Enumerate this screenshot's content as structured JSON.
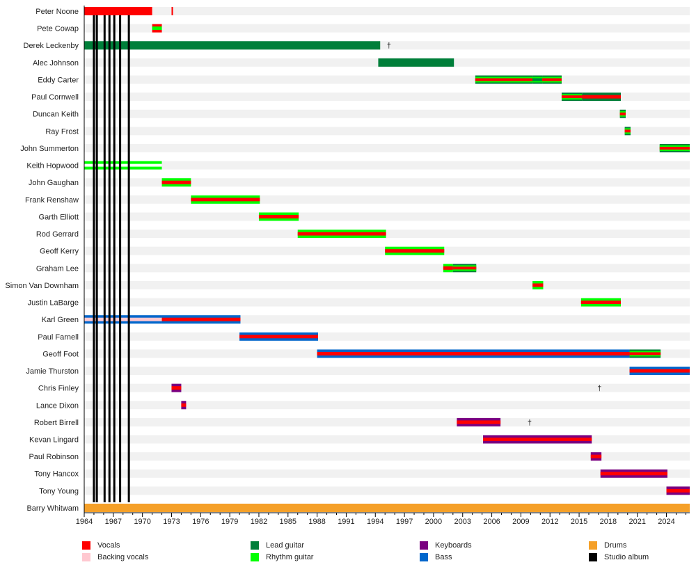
{
  "chart_data": {
    "type": "timeline",
    "xlim": [
      1964,
      2026.4
    ],
    "x_ticks": [
      1964,
      1967,
      1970,
      1973,
      1976,
      1979,
      1982,
      1985,
      1988,
      1991,
      1994,
      1997,
      2000,
      2003,
      2006,
      2009,
      2012,
      2015,
      2018,
      2021,
      2024
    ],
    "colors": {
      "vocals": "#ff0000",
      "backing": "#ffc8d0",
      "lead": "#007f3a",
      "rhythm": "#00ff00",
      "keys": "#7a0080",
      "bass": "#0066cc",
      "drums": "#f5a028",
      "album": "#000000",
      "gap": "#ffffff"
    },
    "members": [
      {
        "name": "Peter Noone",
        "segments": [
          {
            "start": 1964,
            "end": 1971.0,
            "layers": [
              "vocals"
            ]
          },
          {
            "start": 1973.0,
            "end": 1973.15,
            "layers": [
              "vocals"
            ]
          }
        ]
      },
      {
        "name": "Pete Cowap",
        "segments": [
          {
            "start": 1971.0,
            "end": 1972.0,
            "layers": [
              "vocals",
              "rhythm"
            ]
          }
        ]
      },
      {
        "name": "Derek Leckenby",
        "segments": [
          {
            "start": 1964,
            "end": 1994.5,
            "layers": [
              "lead"
            ]
          }
        ],
        "death": 1995.4
      },
      {
        "name": "Alec Johnson",
        "segments": [
          {
            "start": 1994.3,
            "end": 2002.1,
            "layers": [
              "lead"
            ]
          }
        ]
      },
      {
        "name": "Eddy Carter",
        "segments": [
          {
            "start": 2004.3,
            "end": 2010.2,
            "layers": [
              "lead",
              "rhythm",
              "vocals"
            ]
          },
          {
            "start": 2010.2,
            "end": 2011.2,
            "layers": [
              "lead",
              "rhythm",
              "lead"
            ]
          },
          {
            "start": 2011.2,
            "end": 2013.2,
            "layers": [
              "lead",
              "rhythm",
              "vocals"
            ]
          }
        ]
      },
      {
        "name": "Paul Cornwell",
        "segments": [
          {
            "start": 2013.2,
            "end": 2015.3,
            "layers": [
              "lead",
              "rhythm",
              "vocals"
            ]
          },
          {
            "start": 2015.3,
            "end": 2019.3,
            "layers": [
              "lead",
              "vocals"
            ]
          }
        ]
      },
      {
        "name": "Duncan Keith",
        "segments": [
          {
            "start": 2019.2,
            "end": 2019.8,
            "layers": [
              "lead",
              "rhythm",
              "vocals"
            ]
          }
        ]
      },
      {
        "name": "Ray Frost",
        "segments": [
          {
            "start": 2019.7,
            "end": 2020.3,
            "layers": [
              "lead",
              "rhythm",
              "vocals"
            ]
          }
        ]
      },
      {
        "name": "John Summerton",
        "segments": [
          {
            "start": 2023.3,
            "end": 2026.4,
            "layers": [
              "lead",
              "rhythm",
              "vocals"
            ]
          }
        ]
      },
      {
        "name": "Keith Hopwood",
        "segments": [
          {
            "start": 1964,
            "end": 1972.0,
            "layers": [
              "rhythm",
              "gap"
            ]
          }
        ]
      },
      {
        "name": "John Gaughan",
        "segments": [
          {
            "start": 1972.0,
            "end": 1975.0,
            "layers": [
              "rhythm",
              "vocals"
            ]
          }
        ]
      },
      {
        "name": "Frank Renshaw",
        "segments": [
          {
            "start": 1975.0,
            "end": 1982.1,
            "layers": [
              "rhythm",
              "vocals"
            ]
          }
        ]
      },
      {
        "name": "Garth Elliott",
        "segments": [
          {
            "start": 1982.0,
            "end": 1986.1,
            "layers": [
              "rhythm",
              "vocals"
            ]
          }
        ]
      },
      {
        "name": "Rod Gerrard",
        "segments": [
          {
            "start": 1986.0,
            "end": 1995.1,
            "layers": [
              "rhythm",
              "vocals"
            ]
          }
        ]
      },
      {
        "name": "Geoff Kerry",
        "segments": [
          {
            "start": 1995.0,
            "end": 2001.1,
            "layers": [
              "rhythm",
              "vocals"
            ]
          }
        ]
      },
      {
        "name": "Graham Lee",
        "segments": [
          {
            "start": 2001.0,
            "end": 2002.0,
            "layers": [
              "rhythm",
              "vocals"
            ]
          },
          {
            "start": 2002.0,
            "end": 2004.4,
            "layers": [
              "lead",
              "rhythm",
              "vocals"
            ]
          }
        ]
      },
      {
        "name": "Simon Van Downham",
        "segments": [
          {
            "start": 2010.2,
            "end": 2011.3,
            "layers": [
              "rhythm",
              "vocals"
            ]
          }
        ]
      },
      {
        "name": "Justin LaBarge",
        "segments": [
          {
            "start": 2015.2,
            "end": 2019.3,
            "layers": [
              "rhythm",
              "vocals"
            ]
          }
        ]
      },
      {
        "name": "Karl Green",
        "segments": [
          {
            "start": 1964,
            "end": 1972.0,
            "layers": [
              "bass",
              "backing"
            ]
          },
          {
            "start": 1972.0,
            "end": 1980.1,
            "layers": [
              "bass",
              "vocals"
            ]
          }
        ]
      },
      {
        "name": "Paul Farnell",
        "segments": [
          {
            "start": 1980.0,
            "end": 1988.1,
            "layers": [
              "bass",
              "vocals"
            ]
          }
        ]
      },
      {
        "name": "Geoff Foot",
        "segments": [
          {
            "start": 1988.0,
            "end": 2020.2,
            "layers": [
              "bass",
              "vocals"
            ]
          },
          {
            "start": 2020.2,
            "end": 2023.4,
            "layers": [
              "lead",
              "rhythm",
              "vocals"
            ]
          }
        ]
      },
      {
        "name": "Jamie Thurston",
        "segments": [
          {
            "start": 2020.2,
            "end": 2026.4,
            "layers": [
              "bass",
              "vocals"
            ]
          }
        ]
      },
      {
        "name": "Chris Finley",
        "segments": [
          {
            "start": 1973.0,
            "end": 1974.0,
            "layers": [
              "keys",
              "vocals"
            ]
          }
        ],
        "death": 2017.1
      },
      {
        "name": "Lance Dixon",
        "segments": [
          {
            "start": 1974.0,
            "end": 1974.5,
            "layers": [
              "keys",
              "vocals"
            ]
          }
        ]
      },
      {
        "name": "Robert Birrell",
        "segments": [
          {
            "start": 2002.4,
            "end": 2006.9,
            "layers": [
              "keys",
              "vocals"
            ]
          }
        ],
        "death": 2009.9
      },
      {
        "name": "Kevan Lingard",
        "segments": [
          {
            "start": 2005.1,
            "end": 2016.3,
            "layers": [
              "keys",
              "vocals"
            ]
          }
        ]
      },
      {
        "name": "Paul Robinson",
        "segments": [
          {
            "start": 2016.2,
            "end": 2017.3,
            "layers": [
              "keys",
              "vocals"
            ]
          }
        ]
      },
      {
        "name": "Tony Hancox",
        "segments": [
          {
            "start": 2017.2,
            "end": 2024.1,
            "layers": [
              "keys",
              "vocals"
            ]
          }
        ]
      },
      {
        "name": "Tony Young",
        "segments": [
          {
            "start": 2024.0,
            "end": 2026.4,
            "layers": [
              "keys",
              "vocals"
            ]
          }
        ]
      },
      {
        "name": "Barry Whitwam",
        "segments": [
          {
            "start": 1964,
            "end": 2026.4,
            "layers": [
              "drums"
            ]
          }
        ]
      }
    ],
    "albums": [
      1965.0,
      1965.3,
      1966.1,
      1966.6,
      1967.1,
      1967.7,
      1968.6
    ],
    "death_symbol": "†",
    "legend": [
      {
        "role": "vocals",
        "label": "Vocals"
      },
      {
        "role": "backing",
        "label": "Backing vocals"
      },
      {
        "role": "lead",
        "label": "Lead guitar"
      },
      {
        "role": "rhythm",
        "label": "Rhythm guitar"
      },
      {
        "role": "keys",
        "label": "Keyboards"
      },
      {
        "role": "bass",
        "label": "Bass"
      },
      {
        "role": "drums",
        "label": "Drums"
      },
      {
        "role": "album",
        "label": "Studio album"
      }
    ]
  }
}
